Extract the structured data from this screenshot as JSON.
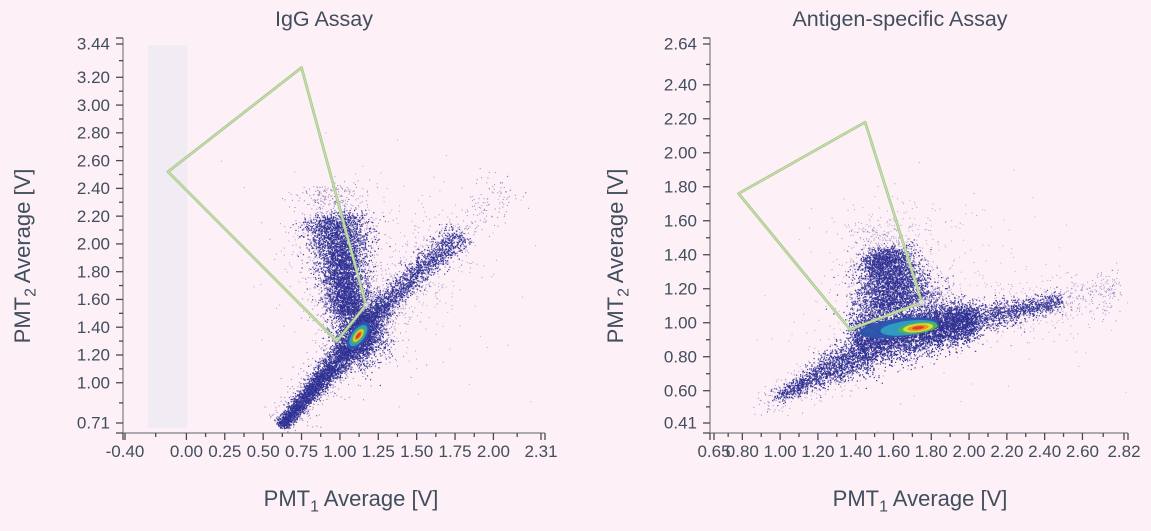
{
  "page": {
    "background_color": "#fdf0f6",
    "text_color": "#414e5e"
  },
  "chart_data": [
    {
      "type": "scatter",
      "title": "IgG Assay",
      "xlabel": "PMT1 Average [V]",
      "ylabel": "PMT2 Average [V]",
      "xlabel_parts": {
        "prefix": "PMT",
        "sub": "1",
        "suffix": " Average [V]"
      },
      "ylabel_parts": {
        "prefix": "PMT",
        "sub": "2",
        "suffix": " Average [V]"
      },
      "xlim": [
        -0.4,
        2.31
      ],
      "ylim": [
        0.71,
        3.44
      ],
      "x_tick_labels": [
        "-0.40",
        "0.00",
        "0.25",
        "0.50",
        "0.75",
        "1.00",
        "1.25",
        "1.50",
        "1.75",
        "2.00",
        "2.31"
      ],
      "y_tick_labels": [
        "0.71",
        "1.00",
        "1.20",
        "1.40",
        "1.60",
        "1.80",
        "2.00",
        "2.20",
        "2.40",
        "2.60",
        "2.80",
        "3.00",
        "3.20",
        "3.44"
      ],
      "grid": false,
      "axis_color": "#909095",
      "tick_color": "#4a4a52",
      "label_color": "#414e5e",
      "point_color": "#2d3092",
      "highlight_band": {
        "x_from": -0.25,
        "x_to": 0.005,
        "color": "rgba(232,232,240,0.55)"
      },
      "gate": {
        "color": "#a7ca8d",
        "inner_color": "#cde0b4",
        "vertices": [
          [
            -0.12,
            2.52
          ],
          [
            0.75,
            3.27
          ],
          [
            1.17,
            1.56
          ],
          [
            0.98,
            1.3
          ]
        ],
        "handle": {
          "at": [
            1.17,
            1.56
          ],
          "r": 2.6
        }
      },
      "density_peak": {
        "x": 1.12,
        "y": 1.34
      },
      "core": {
        "center": [
          1.12,
          1.34
        ],
        "angle_deg": -52,
        "layers": [
          {
            "color": "#2f55ae",
            "rx": 0.105,
            "ry": 0.057
          },
          {
            "color": "#2f9fc4",
            "rx": 0.082,
            "ry": 0.044
          },
          {
            "color": "#54b54b",
            "rx": 0.063,
            "ry": 0.033
          },
          {
            "color": "#dfe13a",
            "rx": 0.048,
            "ry": 0.025
          },
          {
            "color": "#ee8e2c",
            "rx": 0.037,
            "ry": 0.018
          },
          {
            "color": "#df3a22",
            "rx": 0.024,
            "ry": 0.011
          }
        ]
      },
      "clusters": [
        {
          "type": "segment",
          "from": [
            0.615,
            0.695
          ],
          "to": [
            1.07,
            1.27
          ],
          "n": 2800,
          "w_from": 0.018,
          "w_to": 0.045,
          "jitter": 0.012,
          "color": "#2d3092",
          "size": 1.2,
          "alpha": 0.95,
          "seed": 11
        },
        {
          "type": "segment",
          "from": [
            0.615,
            0.695
          ],
          "to": [
            1.07,
            1.27
          ],
          "n": 500,
          "w_from": 0.05,
          "w_to": 0.09,
          "jitter": 0.02,
          "color": "#574fa4",
          "size": 1,
          "alpha": 0.7,
          "seed": 12
        },
        {
          "type": "gauss",
          "center": [
            1.13,
            1.36
          ],
          "sx": 0.075,
          "sy": 0.1,
          "n": 2200,
          "color": "#2d3092",
          "size": 1.2,
          "alpha": 0.95,
          "seed": 13
        },
        {
          "type": "gauss",
          "center": [
            1.14,
            1.45
          ],
          "sx": 0.13,
          "sy": 0.17,
          "n": 700,
          "color": "#4d45a0",
          "size": 1,
          "alpha": 0.65,
          "seed": 14
        },
        {
          "type": "segment",
          "from": [
            1.06,
            1.5
          ],
          "to": [
            0.96,
            2.2
          ],
          "n": 3800,
          "w_from": 0.055,
          "w_to": 0.1,
          "jitter": 0.02,
          "color": "#2d3092",
          "size": 1.2,
          "alpha": 0.92,
          "seed": 15
        },
        {
          "type": "segment",
          "from": [
            1.06,
            1.5
          ],
          "to": [
            0.96,
            2.2
          ],
          "n": 1000,
          "w_from": 0.09,
          "w_to": 0.16,
          "jitter": 0.02,
          "color": "#554da6",
          "size": 1,
          "alpha": 0.55,
          "seed": 16
        },
        {
          "type": "segment",
          "from": [
            0.96,
            2.2
          ],
          "to": [
            0.92,
            2.42
          ],
          "n": 260,
          "w_from": 0.1,
          "w_to": 0.13,
          "jitter": 0.02,
          "color": "#5a52a8",
          "size": 1,
          "alpha": 0.65,
          "seed": 17
        },
        {
          "type": "segment",
          "from": [
            1.17,
            1.44
          ],
          "to": [
            1.78,
            2.08
          ],
          "n": 1700,
          "w_from": 0.03,
          "w_to": 0.05,
          "jitter": 0.015,
          "bias": 1.3,
          "color": "#2d3092",
          "size": 1.2,
          "alpha": 0.92,
          "seed": 18
        },
        {
          "type": "segment",
          "from": [
            1.17,
            1.44
          ],
          "to": [
            1.78,
            2.08
          ],
          "n": 600,
          "w_from": 0.07,
          "w_to": 0.12,
          "jitter": 0.02,
          "bias": 1.3,
          "color": "#5a52a8",
          "size": 1,
          "alpha": 0.55,
          "seed": 19
        },
        {
          "type": "segment",
          "from": [
            1.78,
            2.08
          ],
          "to": [
            2.1,
            2.42
          ],
          "n": 120,
          "w_from": 0.05,
          "w_to": 0.09,
          "jitter": 0.02,
          "color": "#5a52a8",
          "size": 1,
          "alpha": 0.65,
          "seed": 20
        },
        {
          "type": "gauss",
          "center": [
            1.3,
            1.8
          ],
          "sx": 0.38,
          "sy": 0.38,
          "n": 300,
          "color": "#6a62af",
          "size": 1,
          "alpha": 0.5,
          "seed": 21
        },
        {
          "type": "gauss",
          "center": [
            2.05,
            2.42
          ],
          "sx": 0.05,
          "sy": 0.05,
          "n": 8,
          "color": "#6a62af",
          "size": 1.2,
          "alpha": 0.8,
          "seed": 22
        }
      ]
    },
    {
      "type": "scatter",
      "title": "Antigen-specific Assay",
      "xlabel": "PMT1 Average [V]",
      "ylabel": "PMT2 Average [V]",
      "xlabel_parts": {
        "prefix": "PMT",
        "sub": "1",
        "suffix": " Average [V]"
      },
      "ylabel_parts": {
        "prefix": "PMT",
        "sub": "2",
        "suffix": " Average [V]"
      },
      "xlim": [
        0.65,
        2.82
      ],
      "ylim": [
        0.41,
        2.64
      ],
      "x_tick_labels": [
        "0.65",
        "0.80",
        "1.00",
        "1.20",
        "1.40",
        "1.60",
        "1.80",
        "2.00",
        "2.20",
        "2.40",
        "2.60",
        "2.82"
      ],
      "y_tick_labels": [
        "0.41",
        "0.60",
        "0.80",
        "1.00",
        "1.20",
        "1.40",
        "1.60",
        "1.80",
        "2.00",
        "2.20",
        "2.40",
        "2.64"
      ],
      "grid": false,
      "axis_color": "#909095",
      "tick_color": "#4a4a52",
      "label_color": "#414e5e",
      "point_color": "#2d3092",
      "highlight_band": null,
      "gate": {
        "color": "#a7ca8d",
        "inner_color": "#cde0b4",
        "vertices": [
          [
            0.78,
            1.76
          ],
          [
            1.45,
            2.18
          ],
          [
            1.75,
            1.12
          ],
          [
            1.37,
            0.96
          ]
        ],
        "handle": {
          "at": [
            1.75,
            1.12
          ],
          "r": 3.2
        }
      },
      "density_peak": {
        "x": 1.73,
        "y": 0.97
      },
      "core": {
        "center": [
          1.73,
          0.97
        ],
        "angle_deg": -7,
        "layers": [
          {
            "color": "#2c55ad",
            "rx": 0.21,
            "ry": 0.055,
            "offset": [
              -0.1,
              0
            ]
          },
          {
            "color": "#2f9fc4",
            "rx": 0.15,
            "ry": 0.042,
            "offset": [
              -0.05,
              0
            ]
          },
          {
            "color": "#54b54b",
            "rx": 0.105,
            "ry": 0.032
          },
          {
            "color": "#dfe13a",
            "rx": 0.08,
            "ry": 0.025
          },
          {
            "color": "#ee8e2c",
            "rx": 0.056,
            "ry": 0.017
          },
          {
            "color": "#df3a22",
            "rx": 0.032,
            "ry": 0.009
          }
        ]
      },
      "clusters": [
        {
          "type": "segment",
          "from": [
            1.4,
            0.9
          ],
          "to": [
            2.02,
            1.02
          ],
          "n": 5200,
          "w_from": 0.085,
          "w_to": 0.05,
          "jitter": 0.02,
          "color": "#2d3092",
          "size": 1.2,
          "alpha": 0.95,
          "seed": 31
        },
        {
          "type": "segment",
          "from": [
            1.42,
            0.98
          ],
          "to": [
            1.95,
            1.07
          ],
          "n": 900,
          "w_from": 0.1,
          "w_to": 0.06,
          "jitter": 0.02,
          "color": "#5149a2",
          "size": 1,
          "alpha": 0.55,
          "seed": 32
        },
        {
          "type": "segment",
          "from": [
            2.02,
            1.02
          ],
          "to": [
            2.48,
            1.13
          ],
          "n": 1000,
          "w_from": 0.045,
          "w_to": 0.02,
          "jitter": 0.015,
          "bias": 1.2,
          "color": "#2d3092",
          "size": 1.2,
          "alpha": 0.9,
          "seed": 33
        },
        {
          "type": "segment",
          "from": [
            2.45,
            1.12
          ],
          "to": [
            2.8,
            1.21
          ],
          "n": 230,
          "w_from": 0.05,
          "w_to": 0.07,
          "jitter": 0.02,
          "color": "#5a52a8",
          "size": 1,
          "alpha": 0.6,
          "seed": 34
        },
        {
          "type": "gauss",
          "center": [
            2.25,
            1.07
          ],
          "sx": 0.22,
          "sy": 0.09,
          "n": 260,
          "color": "#6a62af",
          "size": 1,
          "alpha": 0.5,
          "seed": 35
        },
        {
          "type": "segment",
          "from": [
            1.63,
            1.09
          ],
          "to": [
            1.54,
            1.42
          ],
          "n": 3000,
          "w_from": 0.11,
          "w_to": 0.06,
          "jitter": 0.02,
          "color": "#2d3092",
          "size": 1.2,
          "alpha": 0.92,
          "seed": 36
        },
        {
          "type": "segment",
          "from": [
            1.63,
            1.09
          ],
          "to": [
            1.54,
            1.42
          ],
          "n": 900,
          "w_from": 0.15,
          "w_to": 0.1,
          "jitter": 0.02,
          "color": "#564ea7",
          "size": 1,
          "alpha": 0.5,
          "seed": 37
        },
        {
          "type": "segment",
          "from": [
            1.54,
            1.42
          ],
          "to": [
            1.5,
            1.58
          ],
          "n": 180,
          "w_from": 0.08,
          "w_to": 0.1,
          "jitter": 0.02,
          "color": "#5a52a8",
          "size": 1,
          "alpha": 0.55,
          "seed": 38
        },
        {
          "type": "segment",
          "from": [
            0.97,
            0.555
          ],
          "to": [
            1.45,
            0.835
          ],
          "n": 1400,
          "w_from": 0.015,
          "w_to": 0.06,
          "jitter": 0.012,
          "bias": 0.7,
          "color": "#2d3092",
          "size": 1.2,
          "alpha": 0.92,
          "seed": 39
        },
        {
          "type": "segment",
          "from": [
            0.97,
            0.555
          ],
          "to": [
            1.45,
            0.835
          ],
          "n": 280,
          "w_from": 0.05,
          "w_to": 0.1,
          "jitter": 0.02,
          "color": "#5a52a8",
          "size": 1,
          "alpha": 0.5,
          "seed": 40
        },
        {
          "type": "segment",
          "from": [
            0.88,
            0.49
          ],
          "to": [
            1.0,
            0.565
          ],
          "n": 40,
          "w_from": 0.03,
          "w_to": 0.05,
          "jitter": 0.02,
          "color": "#6a62af",
          "size": 1,
          "alpha": 0.7,
          "seed": 41
        },
        {
          "type": "gauss",
          "center": [
            1.78,
            1.18
          ],
          "sx": 0.4,
          "sy": 0.25,
          "n": 280,
          "color": "#6a62af",
          "size": 1,
          "alpha": 0.45,
          "seed": 42
        },
        {
          "type": "gauss",
          "center": [
            1.62,
            1.52
          ],
          "sx": 0.18,
          "sy": 0.13,
          "n": 120,
          "color": "#6a62af",
          "size": 1,
          "alpha": 0.55,
          "seed": 43
        }
      ]
    }
  ]
}
